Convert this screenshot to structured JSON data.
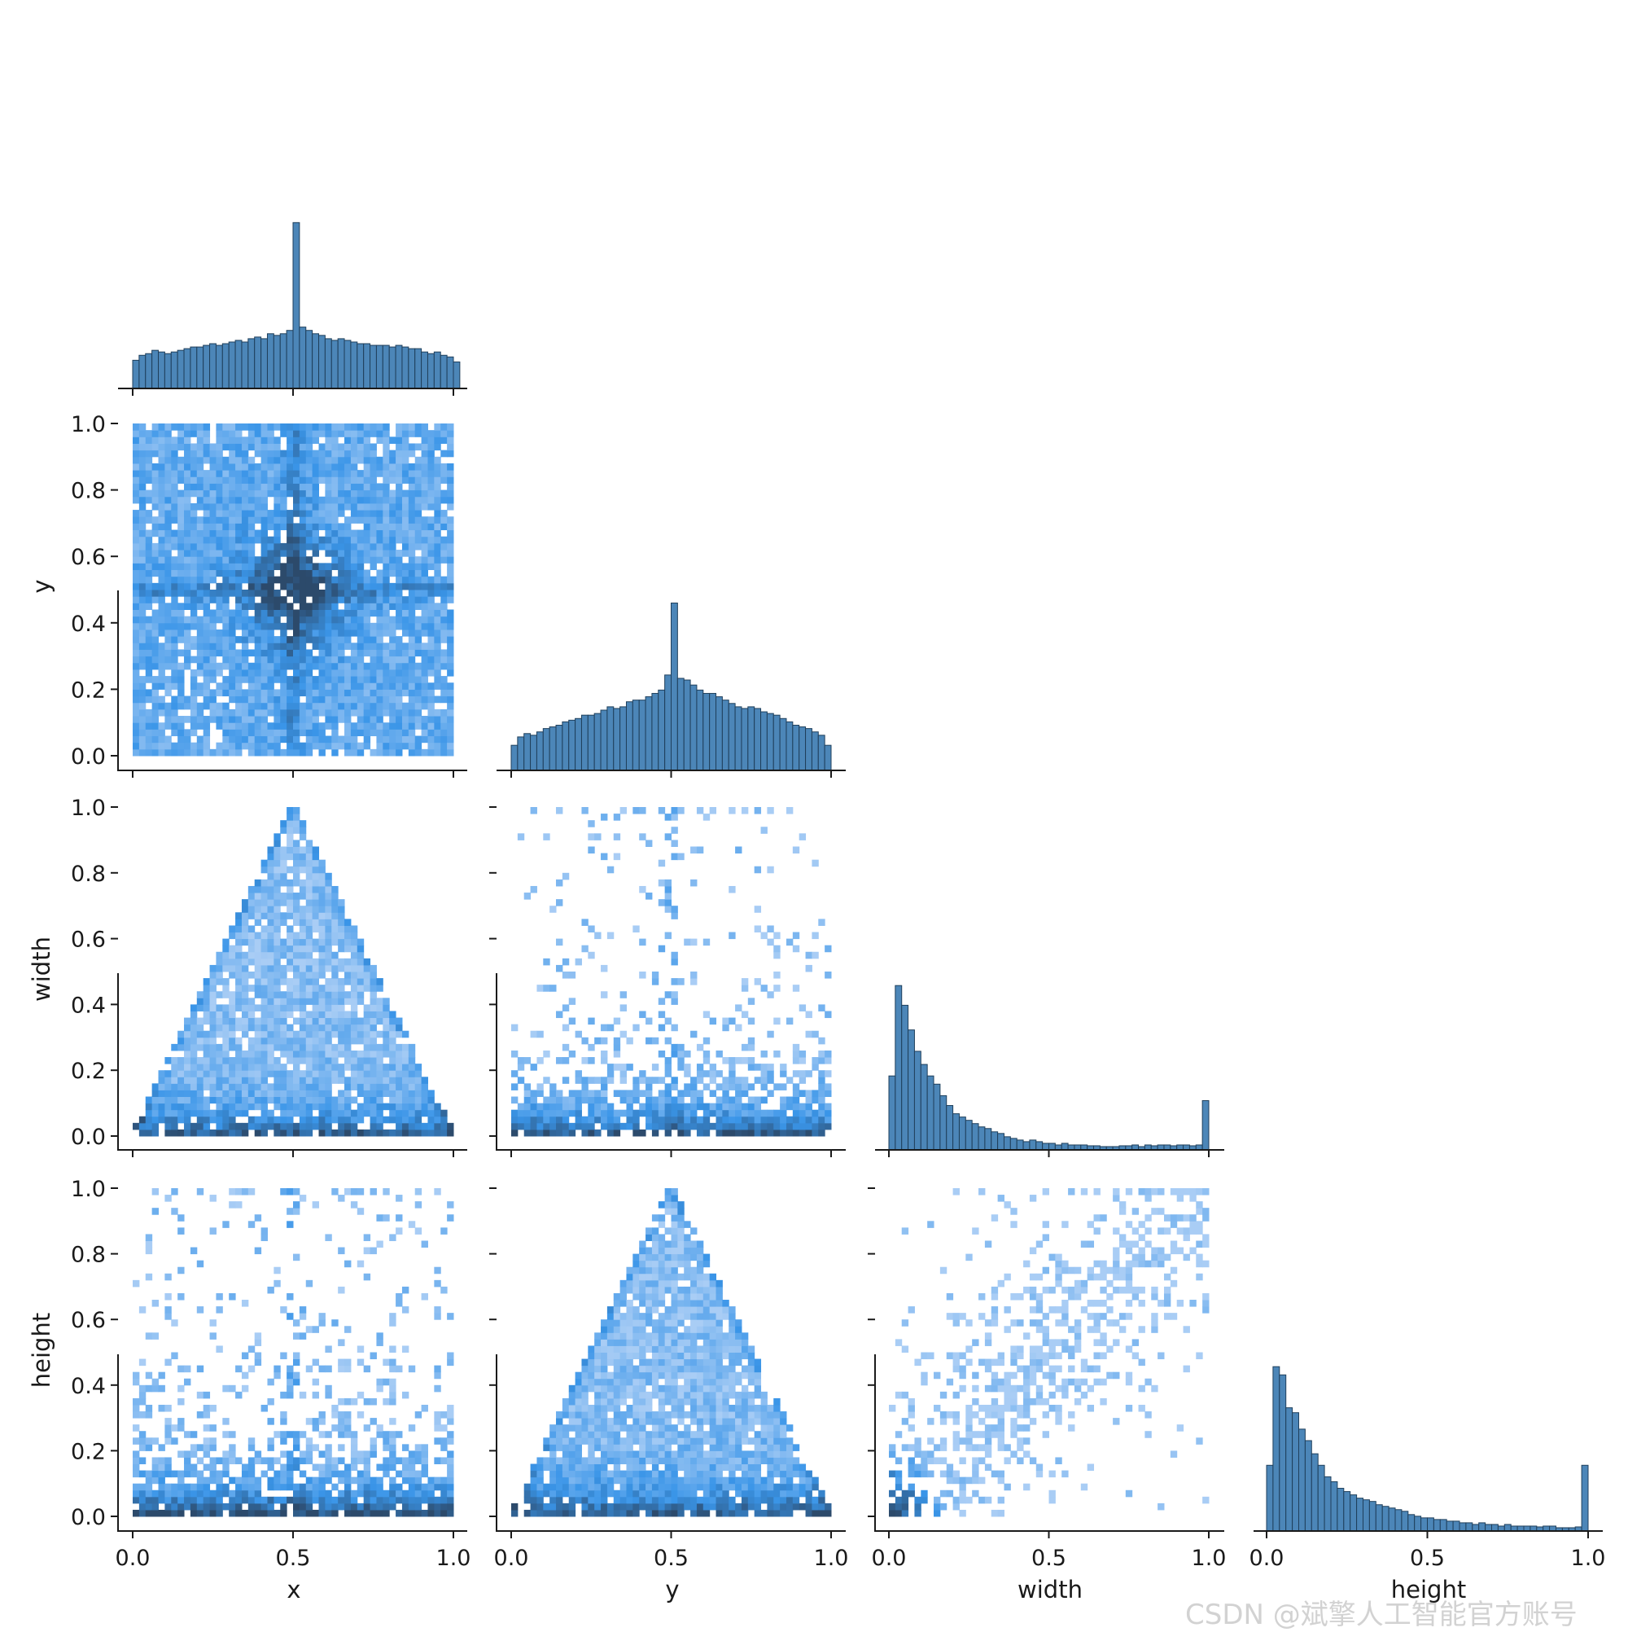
{
  "chart_data": {
    "type": "pairplot-corner",
    "variables": [
      "x",
      "y",
      "width",
      "height"
    ],
    "tick_labels": [
      "0.0",
      "0.2",
      "0.4",
      "0.6",
      "0.8",
      "1.0"
    ],
    "x_tick_labels": [
      "0.0",
      "0.5",
      "1.0"
    ],
    "axis_range": [
      0,
      1
    ],
    "grid": false,
    "legend": "none",
    "colors": {
      "hist": "#4c86b8",
      "hist_edge": "#1f3f5b",
      "heat_light": "#a9cdf5",
      "heat_mid": "#3a95e8",
      "heat_dark": "#2c4a6b"
    },
    "diagonal_histograms": [
      {
        "variable": "x",
        "bin_start": 0.0,
        "bin_width": 0.02,
        "counts": [
          0.17,
          0.2,
          0.21,
          0.23,
          0.22,
          0.21,
          0.22,
          0.23,
          0.24,
          0.25,
          0.25,
          0.26,
          0.27,
          0.26,
          0.27,
          0.28,
          0.29,
          0.28,
          0.3,
          0.31,
          0.3,
          0.33,
          0.32,
          0.33,
          0.35,
          1.0,
          0.37,
          0.35,
          0.33,
          0.32,
          0.3,
          0.29,
          0.3,
          0.29,
          0.28,
          0.27,
          0.27,
          0.26,
          0.26,
          0.26,
          0.25,
          0.26,
          0.25,
          0.24,
          0.24,
          0.22,
          0.21,
          0.22,
          0.2,
          0.19,
          0.16
        ]
      },
      {
        "variable": "y",
        "bin_start": 0.0,
        "bin_width": 0.02,
        "counts": [
          0.15,
          0.2,
          0.22,
          0.21,
          0.23,
          0.25,
          0.26,
          0.27,
          0.29,
          0.3,
          0.31,
          0.33,
          0.33,
          0.34,
          0.36,
          0.38,
          0.37,
          0.38,
          0.41,
          0.42,
          0.42,
          0.44,
          0.46,
          0.48,
          0.57,
          1.0,
          0.55,
          0.54,
          0.51,
          0.48,
          0.46,
          0.46,
          0.44,
          0.42,
          0.4,
          0.38,
          0.37,
          0.38,
          0.37,
          0.35,
          0.34,
          0.33,
          0.31,
          0.29,
          0.27,
          0.26,
          0.25,
          0.23,
          0.21,
          0.15
        ]
      },
      {
        "variable": "width",
        "bin_start": 0.0,
        "bin_width": 0.02,
        "counts": [
          0.45,
          1.0,
          0.88,
          0.73,
          0.6,
          0.52,
          0.45,
          0.4,
          0.33,
          0.27,
          0.22,
          0.2,
          0.18,
          0.16,
          0.14,
          0.13,
          0.11,
          0.1,
          0.08,
          0.07,
          0.06,
          0.05,
          0.06,
          0.05,
          0.04,
          0.04,
          0.03,
          0.04,
          0.03,
          0.03,
          0.03,
          0.025,
          0.025,
          0.02,
          0.02,
          0.02,
          0.025,
          0.025,
          0.03,
          0.02,
          0.03,
          0.025,
          0.03,
          0.03,
          0.025,
          0.03,
          0.03,
          0.025,
          0.03,
          0.3
        ]
      },
      {
        "variable": "height",
        "bin_start": 0.0,
        "bin_width": 0.02,
        "counts": [
          0.4,
          1.0,
          0.95,
          0.75,
          0.72,
          0.62,
          0.55,
          0.47,
          0.4,
          0.33,
          0.3,
          0.26,
          0.24,
          0.22,
          0.2,
          0.19,
          0.18,
          0.16,
          0.15,
          0.14,
          0.13,
          0.12,
          0.1,
          0.09,
          0.08,
          0.08,
          0.07,
          0.07,
          0.06,
          0.06,
          0.05,
          0.05,
          0.04,
          0.05,
          0.04,
          0.04,
          0.03,
          0.04,
          0.03,
          0.03,
          0.03,
          0.03,
          0.025,
          0.03,
          0.03,
          0.02,
          0.02,
          0.02,
          0.025,
          0.4
        ]
      }
    ],
    "bivariate_histograms": [
      {
        "x_var": "x",
        "y_var": "y",
        "pattern": "cross-concentration at (0.5, 0.5), uniform within [0,1]x[0,1]"
      },
      {
        "x_var": "x",
        "y_var": "width",
        "pattern": "triangle: width <= 2*min(x,1-x), dense at small width"
      },
      {
        "x_var": "y",
        "y_var": "width",
        "pattern": "broad, dense at small width, concentration at y=0.5"
      },
      {
        "x_var": "x",
        "y_var": "height",
        "pattern": "broad, dense at small height, concentration at x=0.5"
      },
      {
        "x_var": "y",
        "y_var": "height",
        "pattern": "triangle: height <= 2*min(y,1-y), dense at small height"
      },
      {
        "x_var": "width",
        "y_var": "height",
        "pattern": "positive correlation, dense near (0,0)"
      }
    ]
  },
  "watermark": "CSDN @斌擎人工智能官方账号"
}
